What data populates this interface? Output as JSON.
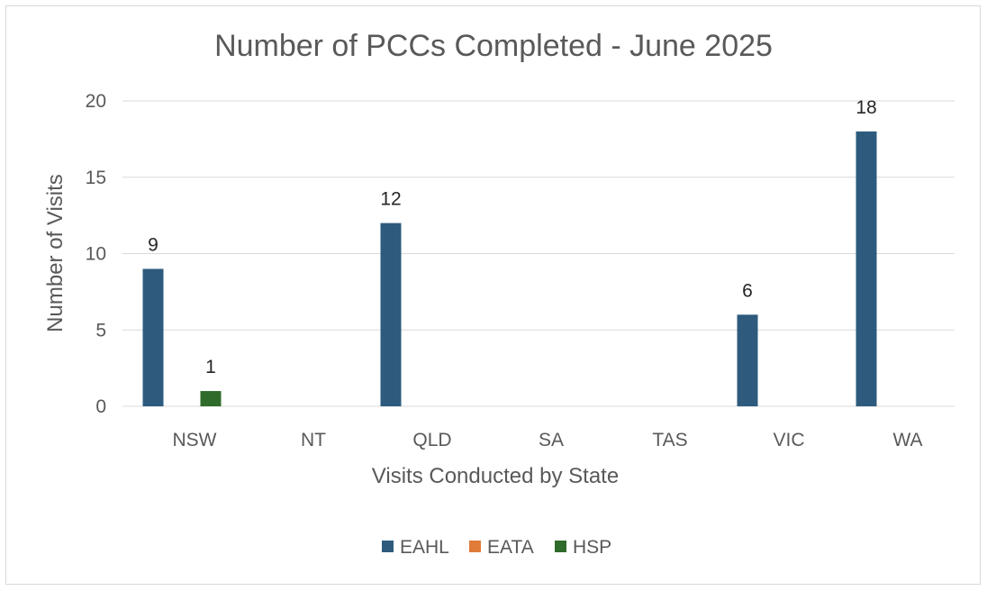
{
  "chart_data": {
    "type": "bar",
    "title": "Number of PCCs Completed - June 2025",
    "xlabel": "Visits Conducted by State",
    "ylabel": "Number of Visits",
    "categories": [
      "NSW",
      "NT",
      "QLD",
      "SA",
      "TAS",
      "VIC",
      "WA"
    ],
    "series": [
      {
        "name": "EAHL",
        "color": "#2e5b7d",
        "values": [
          9,
          0,
          12,
          0,
          0,
          6,
          18
        ]
      },
      {
        "name": "EATA",
        "color": "#e07b39",
        "values": [
          0,
          0,
          0,
          0,
          0,
          0,
          0
        ]
      },
      {
        "name": "HSP",
        "color": "#2f6b2a",
        "values": [
          1,
          0,
          0,
          0,
          0,
          0,
          0
        ]
      }
    ],
    "data_labels": [
      {
        "series": "EAHL",
        "category": "NSW",
        "text": "9"
      },
      {
        "series": "HSP",
        "category": "NSW",
        "text": "1"
      },
      {
        "series": "EAHL",
        "category": "QLD",
        "text": "12"
      },
      {
        "series": "EAHL",
        "category": "VIC",
        "text": "6"
      },
      {
        "series": "EAHL",
        "category": "WA",
        "text": "18"
      }
    ],
    "yticks": [
      "0",
      "5",
      "10",
      "15",
      "20"
    ],
    "ylim": [
      0,
      20
    ],
    "grid": true,
    "legend_position": "bottom",
    "gridline_color": "#d9d9d9"
  }
}
